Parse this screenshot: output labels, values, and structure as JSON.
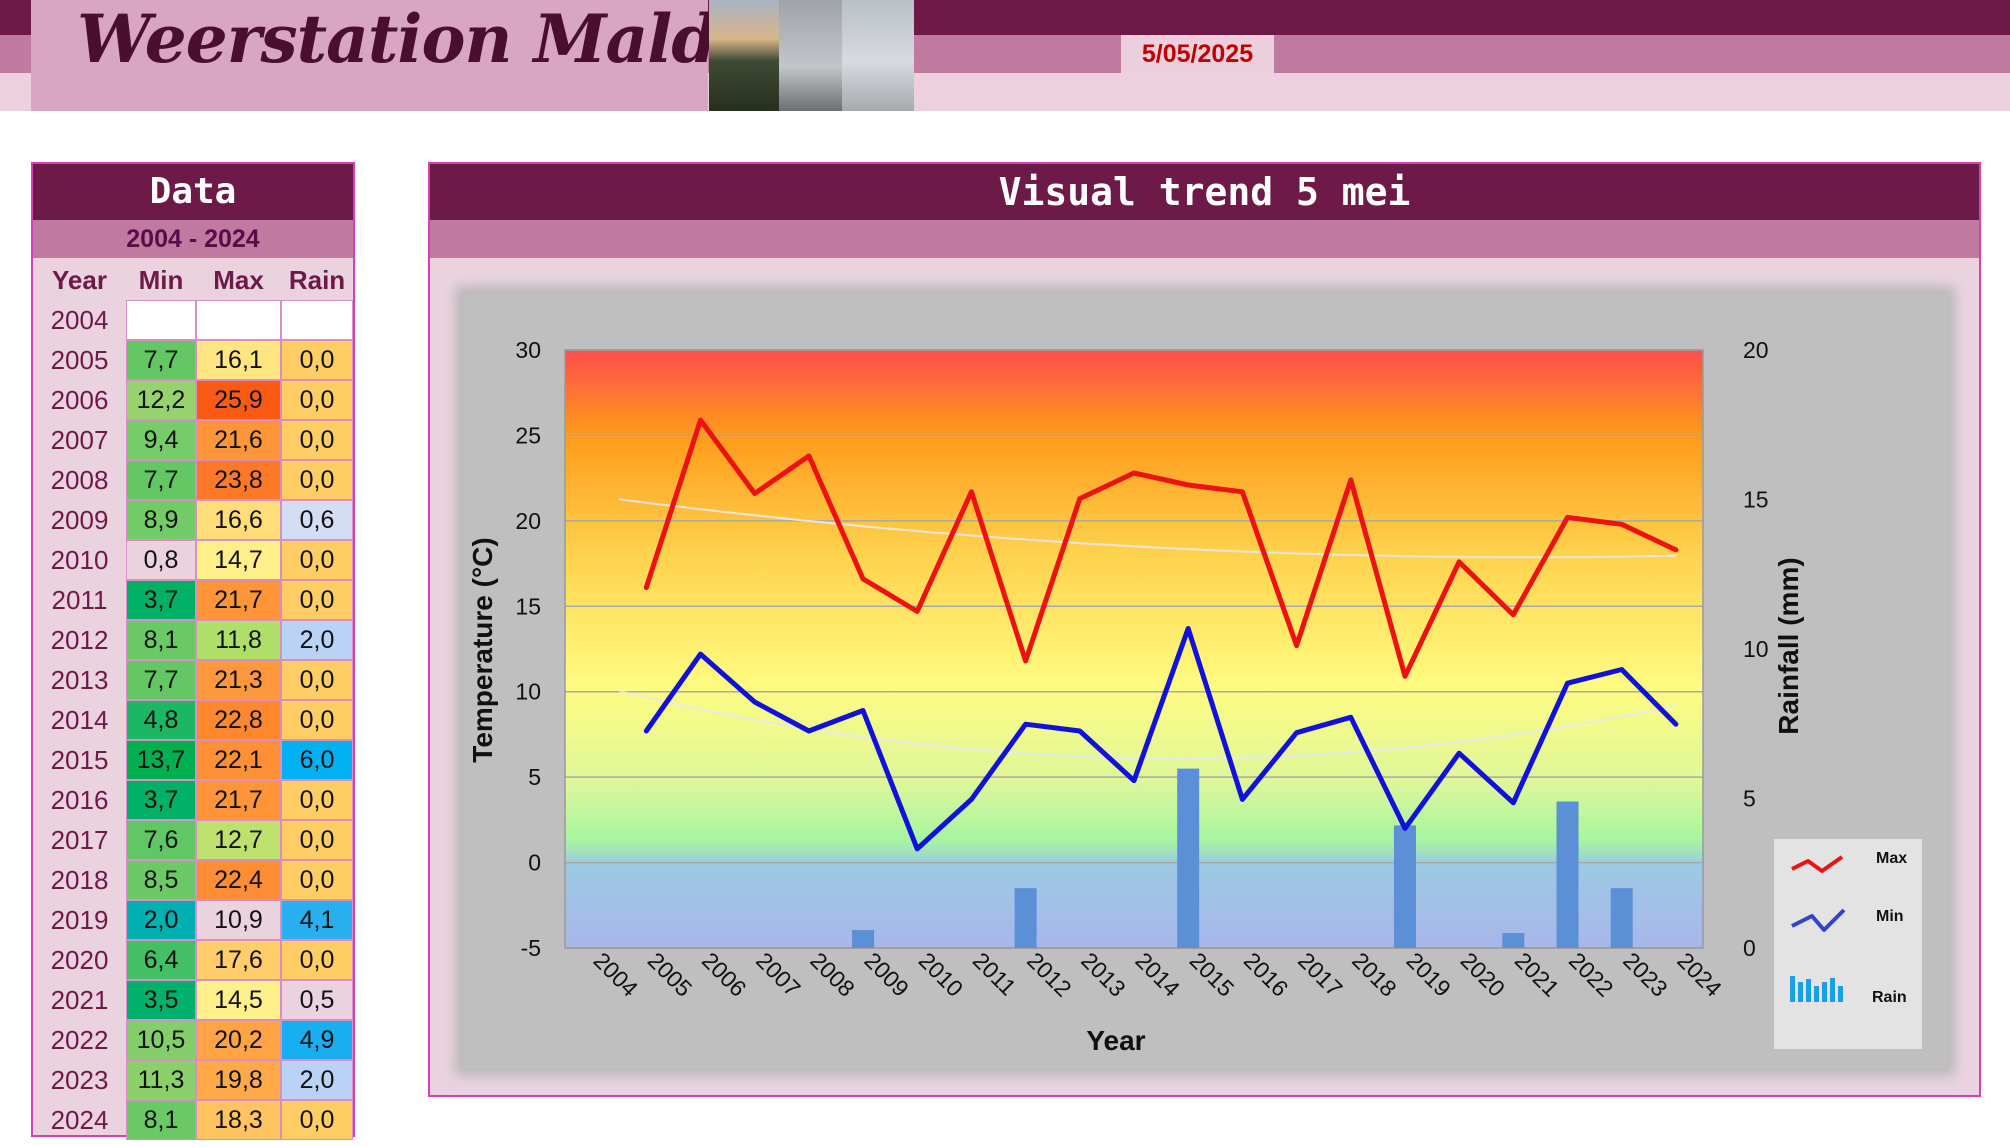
{
  "header": {
    "title": "Weerstation Malderen",
    "date": "5/05/2025"
  },
  "data_table": {
    "title": "Data",
    "range": "2004 - 2024",
    "columns": [
      "Year",
      "Min",
      "Max",
      "Rain"
    ],
    "rows": [
      {
        "year": "2004",
        "min": "",
        "max": "",
        "rain": ""
      },
      {
        "year": "2005",
        "min": "7,7",
        "max": "16,1",
        "rain": "0,0"
      },
      {
        "year": "2006",
        "min": "12,2",
        "max": "25,9",
        "rain": "0,0"
      },
      {
        "year": "2007",
        "min": "9,4",
        "max": "21,6",
        "rain": "0,0"
      },
      {
        "year": "2008",
        "min": "7,7",
        "max": "23,8",
        "rain": "0,0"
      },
      {
        "year": "2009",
        "min": "8,9",
        "max": "16,6",
        "rain": "0,6"
      },
      {
        "year": "2010",
        "min": "0,8",
        "max": "14,7",
        "rain": "0,0"
      },
      {
        "year": "2011",
        "min": "3,7",
        "max": "21,7",
        "rain": "0,0"
      },
      {
        "year": "2012",
        "min": "8,1",
        "max": "11,8",
        "rain": "2,0"
      },
      {
        "year": "2013",
        "min": "7,7",
        "max": "21,3",
        "rain": "0,0"
      },
      {
        "year": "2014",
        "min": "4,8",
        "max": "22,8",
        "rain": "0,0"
      },
      {
        "year": "2015",
        "min": "13,7",
        "max": "22,1",
        "rain": "6,0"
      },
      {
        "year": "2016",
        "min": "3,7",
        "max": "21,7",
        "rain": "0,0"
      },
      {
        "year": "2017",
        "min": "7,6",
        "max": "12,7",
        "rain": "0,0"
      },
      {
        "year": "2018",
        "min": "8,5",
        "max": "22,4",
        "rain": "0,0"
      },
      {
        "year": "2019",
        "min": "2,0",
        "max": "10,9",
        "rain": "4,1"
      },
      {
        "year": "2020",
        "min": "6,4",
        "max": "17,6",
        "rain": "0,0"
      },
      {
        "year": "2021",
        "min": "3,5",
        "max": "14,5",
        "rain": "0,5"
      },
      {
        "year": "2022",
        "min": "10,5",
        "max": "20,2",
        "rain": "4,9"
      },
      {
        "year": "2023",
        "min": "11,3",
        "max": "19,8",
        "rain": "2,0"
      },
      {
        "year": "2024",
        "min": "8,1",
        "max": "18,3",
        "rain": "0,0"
      }
    ]
  },
  "chart_title": "Visual trend 5 mei",
  "chart_data": {
    "type": "line",
    "xlabel": "Year",
    "ylabel": "Temperature (°C)",
    "y2label": "Rainfall (mm)",
    "categories": [
      "2004",
      "2005",
      "2006",
      "2007",
      "2008",
      "2009",
      "2010",
      "2011",
      "2012",
      "2013",
      "2014",
      "2015",
      "2016",
      "2017",
      "2018",
      "2019",
      "2020",
      "2021",
      "2022",
      "2023",
      "2024"
    ],
    "ylim": [
      -5,
      30
    ],
    "y2lim": [
      0,
      20
    ],
    "yticks": [
      "-5",
      "0",
      "5",
      "10",
      "15",
      "20",
      "25",
      "30"
    ],
    "y2ticks": [
      "0",
      "5",
      "10",
      "15",
      "20"
    ],
    "series": [
      {
        "name": "Max",
        "axis": "left",
        "color": "#ee1111",
        "values": [
          null,
          16.1,
          25.9,
          21.6,
          23.8,
          16.6,
          14.7,
          21.7,
          11.8,
          21.3,
          22.8,
          22.1,
          21.7,
          12.7,
          22.4,
          10.9,
          17.6,
          14.5,
          20.2,
          19.8,
          18.3
        ]
      },
      {
        "name": "Min",
        "axis": "left",
        "color": "#1111dd",
        "values": [
          null,
          7.7,
          12.2,
          9.4,
          7.7,
          8.9,
          0.8,
          3.7,
          8.1,
          7.7,
          4.8,
          13.7,
          3.7,
          7.6,
          8.5,
          2.0,
          6.4,
          3.5,
          10.5,
          11.3,
          8.1
        ]
      },
      {
        "name": "Rain",
        "axis": "right",
        "type": "bar",
        "color": "#5b8fd6",
        "values": [
          null,
          0,
          0,
          0,
          0,
          0.6,
          0,
          0,
          2.0,
          0,
          0,
          6.0,
          0,
          0,
          0,
          4.1,
          0,
          0.5,
          4.9,
          2.0,
          0
        ]
      }
    ],
    "legend_position": "bottom-right",
    "grid": true
  }
}
